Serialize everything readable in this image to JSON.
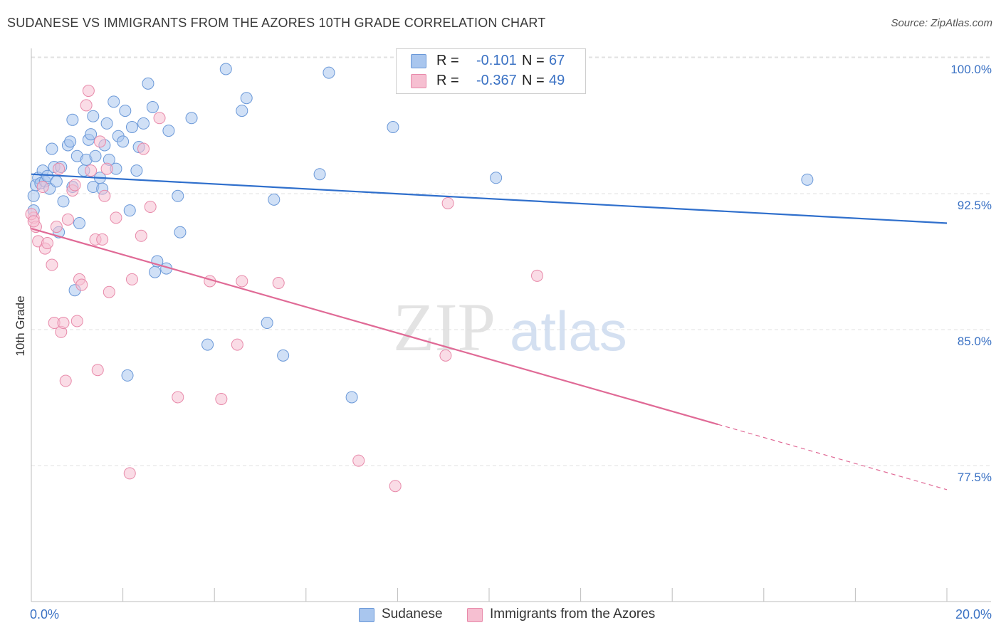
{
  "header": {
    "title": "SUDANESE VS IMMIGRANTS FROM THE AZORES 10TH GRADE CORRELATION CHART",
    "source": "Source: ZipAtlas.com"
  },
  "legend": {
    "r_label": "R =",
    "n_label": "N =",
    "entries": [
      {
        "name": "Sudanese",
        "r": "-0.101",
        "n": "67",
        "fill": "#a9c6ee",
        "stroke": "#6a98d8"
      },
      {
        "name": "Immigrants from the Azores",
        "r": "-0.367",
        "n": "49",
        "fill": "#f6bfd1",
        "stroke": "#e88aaa"
      }
    ]
  },
  "watermark": {
    "zip": "ZIP",
    "atlas": "atlas"
  },
  "chart_data": {
    "type": "scatter",
    "title": "SUDANESE VS IMMIGRANTS FROM THE AZORES 10TH GRADE CORRELATION CHART",
    "ylabel": "10th Grade",
    "xlabel": "",
    "xlim": [
      0,
      20
    ],
    "ylim": [
      70,
      101
    ],
    "x_tick_labels": [
      "0.0%",
      "20.0%"
    ],
    "y_ticks": [
      100.0,
      92.5,
      85.0,
      77.5
    ],
    "y_tick_labels": [
      "100.0%",
      "92.5%",
      "85.0%",
      "77.5%"
    ],
    "grid": true,
    "series": [
      {
        "name": "Sudanese",
        "color": "#6a98d8",
        "trend": {
          "x": [
            0,
            20
          ],
          "y": [
            94.2,
            91.5
          ],
          "dashed_from_x": null
        },
        "points": [
          [
            0.05,
            92.2
          ],
          [
            0.05,
            93.0
          ],
          [
            0.1,
            93.6
          ],
          [
            0.15,
            94.0
          ],
          [
            0.2,
            93.7
          ],
          [
            0.25,
            94.4
          ],
          [
            0.3,
            93.8
          ],
          [
            0.35,
            94.1
          ],
          [
            0.4,
            93.4
          ],
          [
            0.45,
            95.6
          ],
          [
            0.5,
            94.6
          ],
          [
            0.55,
            93.8
          ],
          [
            0.6,
            91.0
          ],
          [
            0.65,
            94.6
          ],
          [
            0.7,
            92.7
          ],
          [
            0.8,
            95.8
          ],
          [
            0.85,
            96.0
          ],
          [
            0.9,
            97.2
          ],
          [
            0.9,
            93.5
          ],
          [
            0.95,
            87.8
          ],
          [
            1.0,
            95.2
          ],
          [
            1.05,
            91.5
          ],
          [
            1.15,
            94.4
          ],
          [
            1.2,
            95.0
          ],
          [
            1.25,
            96.1
          ],
          [
            1.3,
            96.4
          ],
          [
            1.35,
            97.4
          ],
          [
            1.35,
            93.5
          ],
          [
            1.4,
            95.2
          ],
          [
            1.5,
            94.0
          ],
          [
            1.55,
            93.4
          ],
          [
            1.6,
            95.8
          ],
          [
            1.65,
            97.0
          ],
          [
            1.7,
            95.0
          ],
          [
            1.8,
            98.2
          ],
          [
            1.85,
            94.5
          ],
          [
            1.9,
            96.3
          ],
          [
            2.0,
            96.0
          ],
          [
            2.05,
            97.7
          ],
          [
            2.1,
            83.1
          ],
          [
            2.15,
            92.2
          ],
          [
            2.2,
            96.8
          ],
          [
            2.3,
            94.4
          ],
          [
            2.35,
            95.7
          ],
          [
            2.45,
            97.0
          ],
          [
            2.55,
            99.2
          ],
          [
            2.65,
            97.9
          ],
          [
            2.7,
            88.8
          ],
          [
            2.75,
            89.4
          ],
          [
            2.95,
            89.0
          ],
          [
            3.0,
            96.6
          ],
          [
            3.2,
            93.0
          ],
          [
            3.25,
            91.0
          ],
          [
            3.5,
            97.3
          ],
          [
            3.85,
            84.8
          ],
          [
            4.25,
            100.0
          ],
          [
            4.6,
            97.7
          ],
          [
            4.7,
            98.4
          ],
          [
            5.15,
            86.0
          ],
          [
            5.3,
            92.8
          ],
          [
            5.5,
            84.2
          ],
          [
            6.3,
            94.2
          ],
          [
            6.5,
            99.8
          ],
          [
            7.0,
            81.9
          ],
          [
            7.9,
            96.8
          ],
          [
            10.15,
            94.0
          ],
          [
            16.95,
            93.9
          ]
        ]
      },
      {
        "name": "Immigrants from the Azores",
        "color": "#e88aaa",
        "trend": {
          "x": [
            0,
            20
          ],
          "y": [
            91.2,
            76.8
          ],
          "dashed_from_x": 15.0
        },
        "points": [
          [
            0.05,
            91.8
          ],
          [
            0.1,
            91.3
          ],
          [
            0.15,
            90.5
          ],
          [
            0.25,
            93.5
          ],
          [
            0.3,
            90.1
          ],
          [
            0.35,
            90.4
          ],
          [
            0.45,
            89.2
          ],
          [
            0.5,
            86.0
          ],
          [
            0.55,
            91.3
          ],
          [
            0.6,
            94.5
          ],
          [
            0.65,
            85.5
          ],
          [
            0.7,
            86.0
          ],
          [
            0.75,
            82.8
          ],
          [
            0.8,
            91.7
          ],
          [
            0.9,
            93.3
          ],
          [
            0.95,
            93.6
          ],
          [
            1.0,
            86.1
          ],
          [
            1.05,
            88.4
          ],
          [
            1.1,
            88.1
          ],
          [
            1.2,
            98.0
          ],
          [
            1.25,
            98.8
          ],
          [
            1.3,
            94.4
          ],
          [
            1.4,
            90.6
          ],
          [
            1.45,
            83.4
          ],
          [
            1.5,
            96.0
          ],
          [
            1.55,
            90.6
          ],
          [
            1.6,
            93.0
          ],
          [
            1.65,
            94.5
          ],
          [
            1.7,
            87.7
          ],
          [
            1.85,
            91.8
          ],
          [
            2.15,
            77.7
          ],
          [
            2.2,
            88.4
          ],
          [
            2.4,
            90.8
          ],
          [
            2.45,
            95.6
          ],
          [
            2.6,
            92.4
          ],
          [
            2.8,
            97.3
          ],
          [
            3.2,
            81.9
          ],
          [
            3.9,
            88.3
          ],
          [
            4.15,
            81.8
          ],
          [
            4.5,
            84.8
          ],
          [
            4.6,
            88.3
          ],
          [
            5.4,
            88.2
          ],
          [
            7.15,
            78.4
          ],
          [
            7.95,
            77.0
          ],
          [
            9.05,
            84.2
          ],
          [
            9.1,
            92.6
          ],
          [
            11.05,
            88.6
          ],
          [
            0.0,
            92.0
          ],
          [
            0.05,
            91.6
          ]
        ]
      }
    ]
  }
}
